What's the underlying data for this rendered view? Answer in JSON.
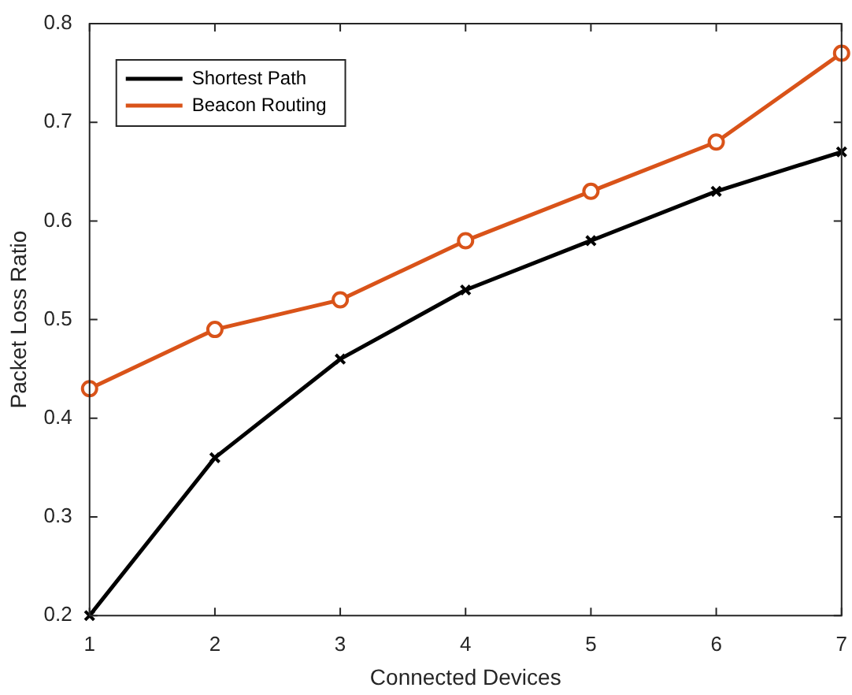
{
  "chart_data": {
    "type": "line",
    "xlabel": "Connected Devices",
    "ylabel": "Packet Loss Ratio",
    "x": [
      1,
      2,
      3,
      4,
      5,
      6,
      7
    ],
    "series": [
      {
        "name": "Shortest Path",
        "color": "#000000",
        "marker": "cross",
        "values": [
          0.2,
          0.36,
          0.46,
          0.53,
          0.58,
          0.63,
          0.67
        ]
      },
      {
        "name": "Beacon Routing",
        "color": "#d95319",
        "marker": "circle",
        "values": [
          0.43,
          0.49,
          0.52,
          0.58,
          0.63,
          0.68,
          0.77
        ]
      }
    ],
    "xlim": [
      1,
      7
    ],
    "xticks": [
      1,
      2,
      3,
      4,
      5,
      6,
      7
    ],
    "ylim": [
      0.2,
      0.8
    ],
    "yticks": [
      0.2,
      0.3,
      0.4,
      0.5,
      0.6,
      0.7,
      0.8
    ],
    "legend": "top left",
    "line_style": "solid"
  }
}
